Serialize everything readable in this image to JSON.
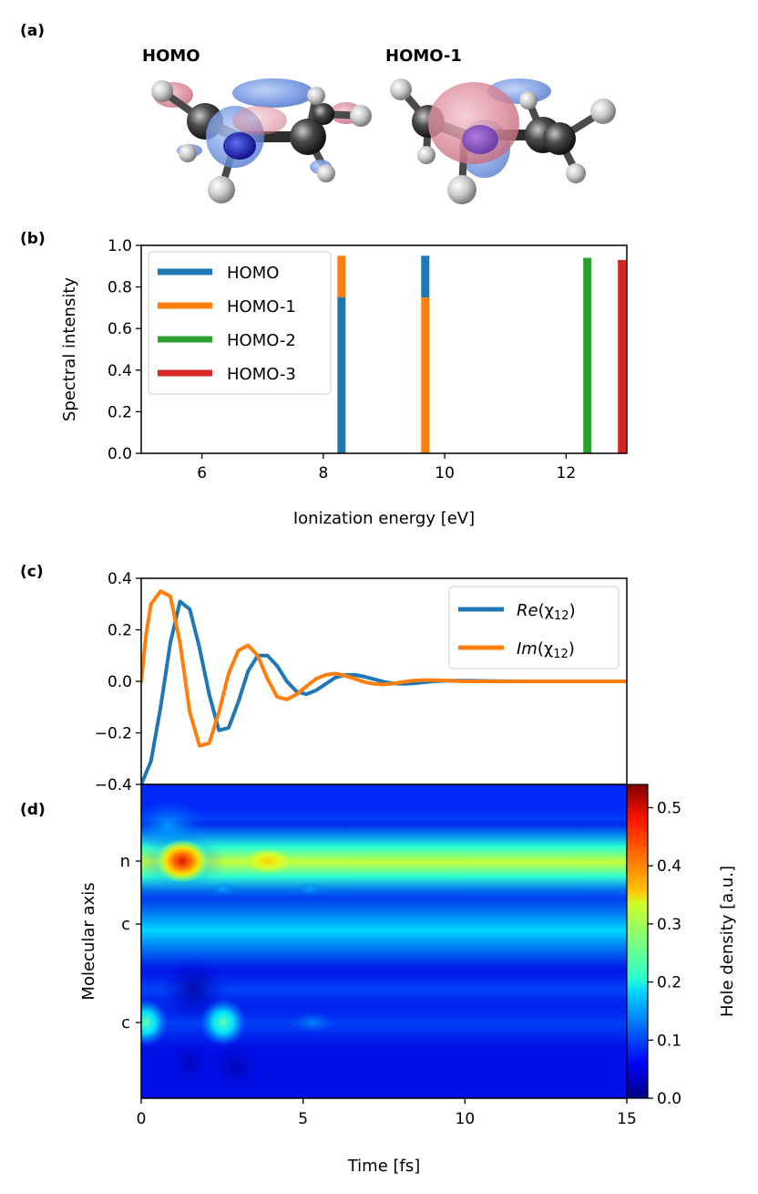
{
  "panel_labels": {
    "a": "(a)",
    "b": "(b)",
    "c": "(c)",
    "d": "(d)"
  },
  "orbital_titles": {
    "homo": "HOMO",
    "homo1": "HOMO-1"
  },
  "colors": {
    "homo": "#1f77b4",
    "homo1": "#ff7f0e",
    "homo2": "#2ca02c",
    "homo3": "#d62728",
    "re": "#1f77b4",
    "im": "#ff7f0e"
  },
  "chart_data": [
    {
      "id": "b",
      "type": "bar",
      "xlabel": "Ionization energy [eV]",
      "ylabel": "Spectral intensity",
      "xlim": [
        5,
        13
      ],
      "ylim": [
        0,
        1.0
      ],
      "xticks": [
        6,
        8,
        10,
        12
      ],
      "yticks": [
        0.0,
        0.2,
        0.4,
        0.6,
        0.8,
        1.0
      ],
      "xtick_labels": [
        "6",
        "8",
        "10",
        "12"
      ],
      "ytick_labels": [
        "0.0",
        "0.2",
        "0.4",
        "0.6",
        "0.8",
        "1.0"
      ],
      "legend": [
        {
          "name": "HOMO",
          "color": "#1f77b4"
        },
        {
          "name": "HOMO-1",
          "color": "#ff7f0e"
        },
        {
          "name": "HOMO-2",
          "color": "#2ca02c"
        },
        {
          "name": "HOMO-3",
          "color": "#d62728"
        }
      ],
      "lines": [
        {
          "x": 8.3,
          "segments": [
            {
              "from": 0.0,
              "to": 0.75,
              "color": "#1f77b4"
            },
            {
              "from": 0.75,
              "to": 0.95,
              "color": "#ff7f0e"
            }
          ]
        },
        {
          "x": 9.68,
          "segments": [
            {
              "from": 0.0,
              "to": 0.75,
              "color": "#ff7f0e"
            },
            {
              "from": 0.75,
              "to": 0.95,
              "color": "#1f77b4"
            }
          ]
        },
        {
          "x": 12.35,
          "segments": [
            {
              "from": 0.0,
              "to": 0.94,
              "color": "#2ca02c"
            }
          ]
        },
        {
          "x": 12.92,
          "segments": [
            {
              "from": 0.0,
              "to": 0.93,
              "color": "#d62728"
            }
          ]
        }
      ]
    },
    {
      "id": "c",
      "type": "line",
      "xlim": [
        0,
        15
      ],
      "ylim": [
        -0.4,
        0.4
      ],
      "yticks": [
        -0.4,
        -0.2,
        0.0,
        0.2,
        0.4
      ],
      "ytick_labels": [
        "−0.4",
        "−0.2",
        "0.0",
        "0.2",
        "0.4"
      ],
      "legend_re": "Re",
      "legend_im": "Im",
      "legend_chi": "(χ",
      "legend_sub": "12",
      "legend_close": ")",
      "series": [
        {
          "name": "Re(χ12)",
          "color": "#1f77b4",
          "x": [
            0,
            0.3,
            0.6,
            0.9,
            1.2,
            1.5,
            1.8,
            2.1,
            2.4,
            2.7,
            3.0,
            3.3,
            3.6,
            3.9,
            4.2,
            4.5,
            4.8,
            5.1,
            5.4,
            5.7,
            6.0,
            6.3,
            6.6,
            6.9,
            7.2,
            7.5,
            7.8,
            8.1,
            8.4,
            8.7,
            9.0,
            9.5,
            10,
            11,
            12,
            13,
            14,
            15
          ],
          "values": [
            -0.4,
            -0.31,
            -0.1,
            0.15,
            0.31,
            0.28,
            0.13,
            -0.05,
            -0.19,
            -0.18,
            -0.08,
            0.04,
            0.1,
            0.1,
            0.06,
            0.0,
            -0.04,
            -0.05,
            -0.035,
            -0.01,
            0.015,
            0.025,
            0.025,
            0.018,
            0.008,
            -0.002,
            -0.008,
            -0.01,
            -0.008,
            -0.004,
            0.0,
            0.003,
            0.003,
            0.001,
            0.0,
            0.0,
            0.0,
            0.0
          ]
        },
        {
          "name": "Im(χ12)",
          "color": "#ff7f0e",
          "x": [
            0,
            0.15,
            0.3,
            0.6,
            0.9,
            1.2,
            1.5,
            1.8,
            2.1,
            2.4,
            2.7,
            3.0,
            3.3,
            3.6,
            3.9,
            4.2,
            4.5,
            4.8,
            5.1,
            5.4,
            5.7,
            6.0,
            6.3,
            6.6,
            6.9,
            7.2,
            7.5,
            7.8,
            8.1,
            8.4,
            8.7,
            9.0,
            9.5,
            10,
            11,
            12,
            13,
            14,
            15
          ],
          "values": [
            0.0,
            0.18,
            0.3,
            0.35,
            0.33,
            0.15,
            -0.12,
            -0.25,
            -0.24,
            -0.12,
            0.03,
            0.12,
            0.14,
            0.1,
            0.01,
            -0.06,
            -0.07,
            -0.05,
            -0.02,
            0.01,
            0.025,
            0.03,
            0.022,
            0.01,
            -0.003,
            -0.01,
            -0.012,
            -0.008,
            -0.002,
            0.003,
            0.005,
            0.005,
            0.003,
            0.0,
            0.0,
            0.0,
            0.0,
            0.0,
            0.0
          ]
        }
      ]
    },
    {
      "id": "d",
      "type": "heatmap",
      "xlabel": "Time [fs]",
      "ylabel": "Molecular axis",
      "xlim": [
        0,
        15
      ],
      "xticks": [
        0,
        5,
        10,
        15
      ],
      "xtick_labels": [
        "0",
        "5",
        "10",
        "15"
      ],
      "row_labels": [
        "n",
        "c",
        "c"
      ],
      "colorbar": {
        "label": "Hole density [a.u.]",
        "range": [
          0,
          0.54
        ],
        "ticks": [
          0.0,
          0.1,
          0.2,
          0.3,
          0.4,
          0.5
        ],
        "tick_labels": [
          "0.0",
          "0.1",
          "0.2",
          "0.3",
          "0.4",
          "0.5"
        ],
        "colormap": "jet"
      },
      "blobs": [
        {
          "name": "n-band",
          "t0": 0,
          "t1": 15,
          "row": "n",
          "value": 0.3
        },
        {
          "name": "n-peak-1",
          "t": 1.3,
          "row": "n",
          "value": 0.52
        },
        {
          "name": "n-peak-2",
          "t": 3.9,
          "row": "n",
          "value": 0.36
        },
        {
          "name": "c-upper-band",
          "t0": 0,
          "t1": 15,
          "row": "c-upper",
          "value": 0.14
        },
        {
          "name": "c-lower-peak-1",
          "t": 0.2,
          "row": "c-lower",
          "value": 0.22
        },
        {
          "name": "c-lower-peak-2",
          "t": 2.6,
          "row": "c-lower",
          "value": 0.22
        }
      ]
    }
  ]
}
